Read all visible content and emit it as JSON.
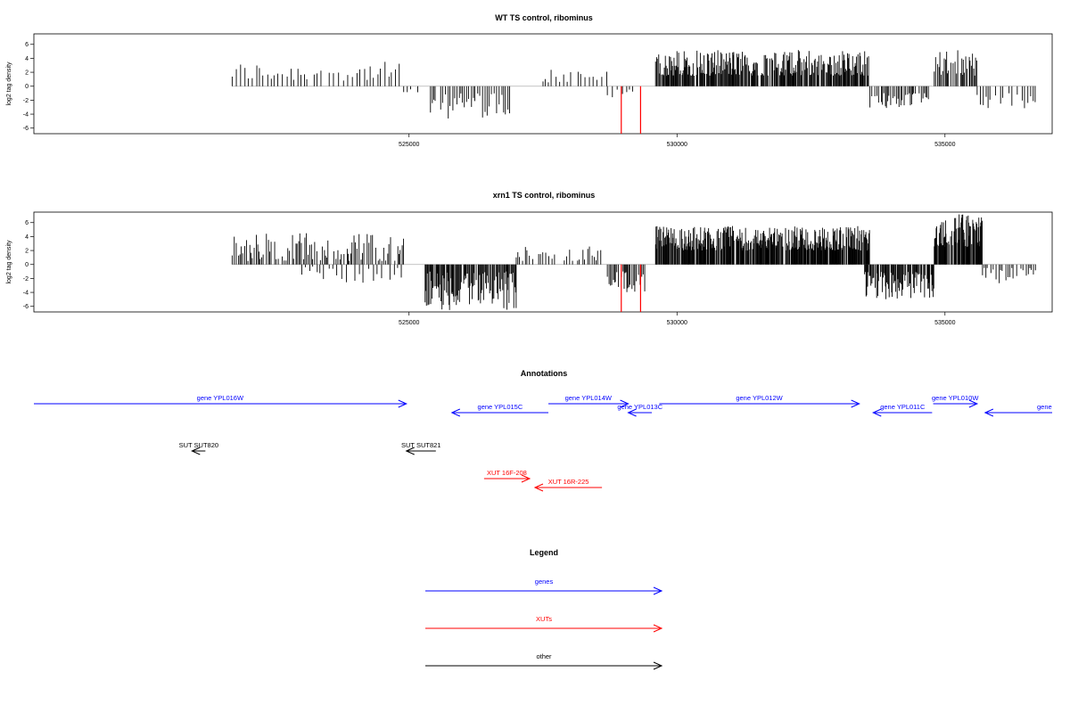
{
  "colors": {
    "gene": "#0000ff",
    "xut": "#ff0000",
    "other": "#000000",
    "signal": "#000000",
    "highlight": "#ff0000",
    "baseline": "#b0b0b0"
  },
  "chart_data": [
    {
      "type": "bar",
      "title": "WT TS control, ribominus",
      "ylabel": "log2 tag density",
      "xlim": [
        518000,
        537000
      ],
      "ylim": [
        -6.8,
        7.5
      ],
      "xticks": [
        525000,
        530000,
        535000
      ],
      "xtick_labels": [
        "525000",
        "530000",
        "535000"
      ],
      "yticks": [
        -6,
        -4,
        -2,
        0,
        2,
        4,
        6
      ],
      "ytick_labels": [
        "-6",
        "-4",
        "-2",
        "0",
        "2",
        "4",
        "6"
      ],
      "segments": [
        {
          "start": 521700,
          "end": 524900,
          "sign": 1,
          "min": 0.8,
          "max": 3.5,
          "spacing": 70
        },
        {
          "start": 524900,
          "end": 525200,
          "sign": -1,
          "min": 0.3,
          "max": 1.2,
          "spacing": 70
        },
        {
          "start": 525400,
          "end": 526900,
          "sign": -1,
          "min": 1.0,
          "max": 4.7,
          "spacing": 40
        },
        {
          "start": 527500,
          "end": 528700,
          "sign": 1,
          "min": 0.5,
          "max": 2.6,
          "spacing": 60
        },
        {
          "start": 528700,
          "end": 529300,
          "sign": -1,
          "min": 0.4,
          "max": 1.6,
          "spacing": 80
        },
        {
          "start": 529600,
          "end": 533600,
          "sign": 1,
          "min": 1.5,
          "max": 5.2,
          "spacing": 14
        },
        {
          "start": 533600,
          "end": 534800,
          "sign": -1,
          "min": 1.0,
          "max": 3.2,
          "spacing": 30
        },
        {
          "start": 534800,
          "end": 535600,
          "sign": 1,
          "min": 1.5,
          "max": 5.2,
          "spacing": 20
        },
        {
          "start": 535600,
          "end": 536700,
          "sign": -1,
          "min": 0.5,
          "max": 3.5,
          "spacing": 45
        }
      ],
      "highlights": [
        {
          "x": 528960,
          "y": -6.8
        },
        {
          "x": 529320,
          "y": -6.8
        }
      ]
    },
    {
      "type": "bar",
      "title": "xrn1 TS control, ribominus",
      "ylabel": "log2 tag density",
      "xlim": [
        518000,
        537000
      ],
      "ylim": [
        -6.8,
        7.5
      ],
      "xticks": [
        525000,
        530000,
        535000
      ],
      "xtick_labels": [
        "525000",
        "530000",
        "535000"
      ],
      "yticks": [
        -6,
        -4,
        -2,
        0,
        2,
        4,
        6
      ],
      "ytick_labels": [
        "-6",
        "-4",
        "-2",
        "0",
        "2",
        "4",
        "6"
      ],
      "segments": [
        {
          "start": 521700,
          "end": 524900,
          "sign": 1,
          "min": 0.5,
          "max": 4.5,
          "spacing": 30
        },
        {
          "start": 523000,
          "end": 524900,
          "sign": -1,
          "min": 0.3,
          "max": 2.8,
          "spacing": 80
        },
        {
          "start": 525300,
          "end": 527000,
          "sign": -1,
          "min": 1.0,
          "max": 6.6,
          "spacing": 14
        },
        {
          "start": 527000,
          "end": 528600,
          "sign": 1,
          "min": 0.5,
          "max": 2.7,
          "spacing": 45
        },
        {
          "start": 528700,
          "end": 529400,
          "sign": -1,
          "min": 1.0,
          "max": 4.0,
          "spacing": 25
        },
        {
          "start": 529600,
          "end": 533600,
          "sign": 1,
          "min": 2.0,
          "max": 5.5,
          "spacing": 10
        },
        {
          "start": 533500,
          "end": 534800,
          "sign": -1,
          "min": 1.0,
          "max": 5.0,
          "spacing": 14
        },
        {
          "start": 534800,
          "end": 535700,
          "sign": 1,
          "min": 2.5,
          "max": 7.2,
          "spacing": 10
        },
        {
          "start": 535700,
          "end": 536700,
          "sign": -1,
          "min": 0.5,
          "max": 2.8,
          "spacing": 30
        }
      ],
      "highlights": [
        {
          "x": 528960,
          "y": -6.8
        },
        {
          "x": 529320,
          "y": -6.8
        }
      ]
    }
  ],
  "annotations": {
    "title": "Annotations",
    "features": [
      {
        "label": "gene YPL016W",
        "type": "gene",
        "start": 518000,
        "end": 524950,
        "strand": "+"
      },
      {
        "label": "gene YPL015C",
        "type": "gene",
        "start": 525800,
        "end": 527600,
        "strand": "-"
      },
      {
        "label": "gene YPL014W",
        "type": "gene",
        "start": 527600,
        "end": 529090,
        "strand": "+"
      },
      {
        "label": "gene YPL013C",
        "type": "gene",
        "start": 529090,
        "end": 529530,
        "strand": "-"
      },
      {
        "label": "gene YPL012W",
        "type": "gene",
        "start": 529670,
        "end": 533400,
        "strand": "+"
      },
      {
        "label": "gene YPL011C",
        "type": "gene",
        "start": 533660,
        "end": 534760,
        "strand": "-"
      },
      {
        "label": "gene YPL010W",
        "type": "gene",
        "start": 534780,
        "end": 535600,
        "strand": "+"
      },
      {
        "label": "gene",
        "type": "gene",
        "start": 535750,
        "end": 537000,
        "strand": "-"
      },
      {
        "label": "SUT SUT820",
        "type": "other",
        "start": 520950,
        "end": 521200,
        "strand": "-"
      },
      {
        "label": "SUT SUT821",
        "type": "other",
        "start": 524950,
        "end": 525500,
        "strand": "-"
      },
      {
        "label": "XUT 16F-208",
        "type": "xut",
        "start": 526400,
        "end": 527250,
        "strand": "+"
      },
      {
        "label": "XUT 16R-225",
        "type": "xut",
        "start": 527350,
        "end": 528600,
        "strand": "-"
      }
    ]
  },
  "legend": {
    "title": "Legend",
    "items": [
      {
        "label": "genes",
        "type": "gene"
      },
      {
        "label": "XUTs",
        "type": "xut"
      },
      {
        "label": "other",
        "type": "other"
      }
    ]
  }
}
